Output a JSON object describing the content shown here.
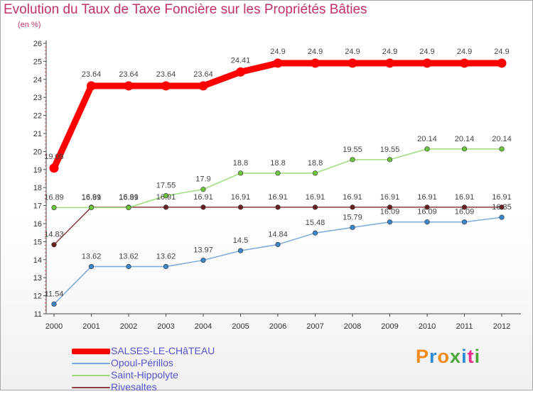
{
  "title": "Evolution du Taux de Taxe Foncière sur les Propriétés Bâties",
  "unit_label": "(en %)",
  "brand": {
    "text": "Proxiti",
    "letter_colors": [
      "#f08a1c",
      "#2a8ad6",
      "#f08a1c",
      "#4aa83a",
      "#2a8ad6",
      "#e8308a",
      "#4aa83a"
    ]
  },
  "chart_data": {
    "type": "line",
    "title": "Evolution du Taux de Taxe Foncière sur les Propriétés Bâties",
    "ylabel": "(en %)",
    "xlabel": "",
    "x": [
      "2000",
      "2001",
      "2002",
      "2003",
      "2004",
      "2005",
      "2006",
      "2007",
      "2008",
      "2009",
      "2010",
      "2011",
      "2012"
    ],
    "ylim": [
      11,
      26
    ],
    "yticks": [
      "11",
      "12",
      "13",
      "14",
      "15",
      "16",
      "17",
      "18",
      "19",
      "20",
      "21",
      "22",
      "23",
      "24",
      "25",
      "26"
    ],
    "series": [
      {
        "name": "SALSES-LE-CHâTEAU",
        "color": "#ff0000",
        "point_color": "#ff0000",
        "highlight": true,
        "values": [
          19.08,
          23.64,
          23.64,
          23.64,
          23.64,
          24.41,
          24.9,
          24.9,
          24.9,
          24.9,
          24.9,
          24.9,
          24.9
        ],
        "labels": [
          "19.08",
          "23.64",
          "23.64",
          "23.64",
          "23.64",
          "24.41",
          "24.9",
          "24.9",
          "24.9",
          "24.9",
          "24.9",
          "24.9",
          "24.9"
        ]
      },
      {
        "name": "Opoul-Périllos",
        "color": "#7aaad8",
        "point_color": "#3a86c8",
        "highlight": false,
        "values": [
          11.54,
          13.62,
          13.62,
          13.62,
          13.97,
          14.5,
          14.84,
          15.48,
          15.79,
          16.09,
          16.09,
          16.09,
          16.35
        ],
        "labels": [
          "11.54",
          "13.62",
          "13.62",
          "13.62",
          "13.97",
          "14.5",
          "14.84",
          "15.48",
          "15.79",
          "16.09",
          "16.09",
          "16.09",
          "16.35"
        ]
      },
      {
        "name": "Saint-Hippolyte",
        "color": "#9ede7a",
        "point_color": "#6cc63c",
        "highlight": false,
        "values": [
          16.89,
          16.89,
          16.89,
          17.55,
          17.9,
          18.8,
          18.8,
          18.8,
          19.55,
          19.55,
          20.14,
          20.14,
          20.14
        ],
        "labels": [
          "16.89",
          "16.89",
          "16.89",
          "17.55",
          "17.9",
          "18.8",
          "18.8",
          "18.8",
          "19.55",
          "19.55",
          "20.14",
          "20.14",
          "20.14"
        ]
      },
      {
        "name": "Rivesaltes",
        "color": "#8a3a3a",
        "point_color": "#6a2020",
        "highlight": false,
        "values": [
          14.83,
          16.91,
          16.91,
          16.91,
          16.91,
          16.91,
          16.91,
          16.91,
          16.91,
          16.91,
          16.91,
          16.91,
          16.91
        ],
        "labels": [
          "14.83",
          "16.91",
          "16.91",
          "16.91",
          "16.91",
          "16.91",
          "16.91",
          "16.91",
          "16.91",
          "16.91",
          "16.91",
          "16.91",
          "16.91"
        ]
      }
    ],
    "legend": "bottom-left",
    "grid": false
  }
}
